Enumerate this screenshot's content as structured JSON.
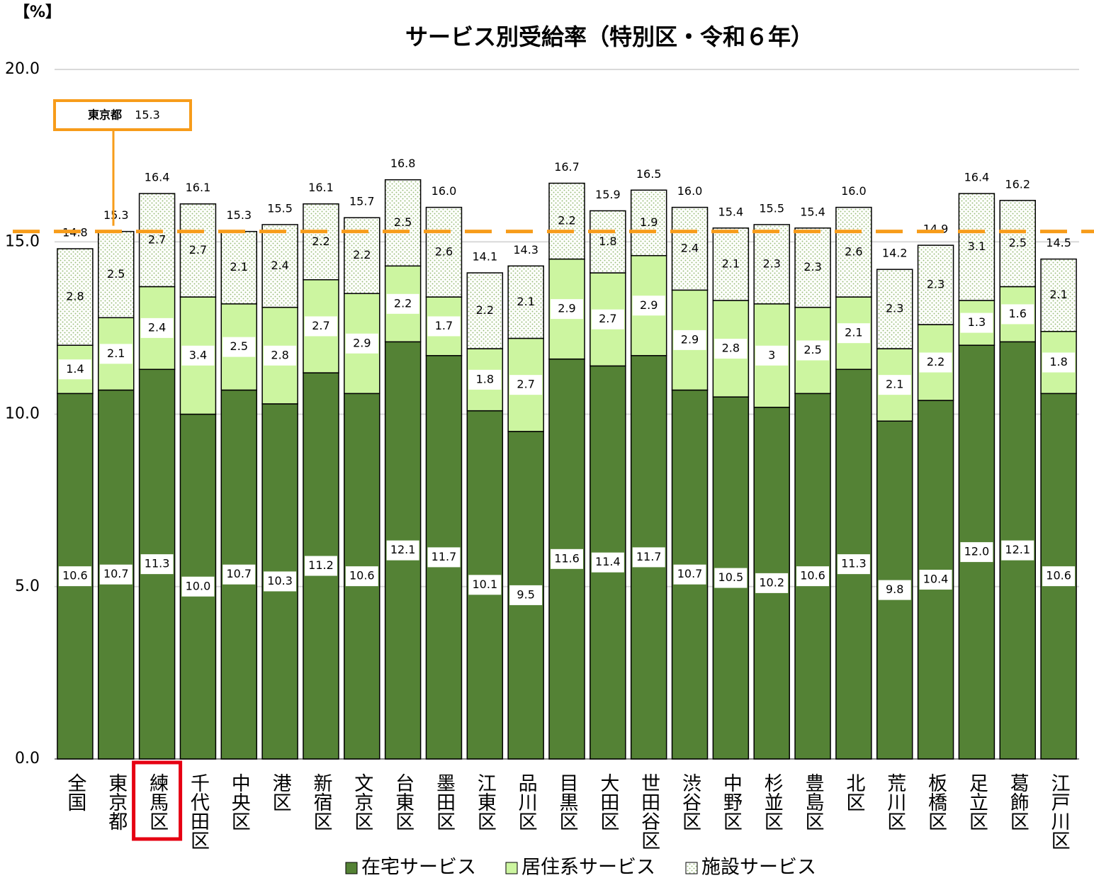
{
  "chart_data": {
    "type": "stacked_bar",
    "title": "サービス別受給率（特別区・令和６年）",
    "unit_label": "【%】",
    "categories": [
      "全国",
      "東京都",
      "練馬区",
      "千代田区",
      "中央区",
      "港区",
      "新宿区",
      "文京区",
      "台東区",
      "墨田区",
      "江東区",
      "品川区",
      "目黒区",
      "大田区",
      "世田谷区",
      "渋谷区",
      "中野区",
      "杉並区",
      "豊島区",
      "北区",
      "荒川区",
      "板橋区",
      "足立区",
      "葛飾区",
      "江戸川区"
    ],
    "highlight_category": "練馬区",
    "series": [
      {
        "name": "在宅サービス",
        "color": "#548235",
        "values": [
          10.6,
          10.7,
          11.3,
          10.0,
          10.7,
          10.3,
          11.2,
          10.6,
          12.1,
          11.7,
          10.1,
          9.5,
          11.6,
          11.4,
          11.7,
          10.7,
          10.5,
          10.2,
          10.6,
          11.3,
          9.8,
          10.4,
          12.0,
          12.1,
          10.6
        ],
        "value_labels": [
          "10.6",
          "10.7",
          "11.3",
          "10.0",
          "10.7",
          "10.3",
          "11.2",
          "10.6",
          "12.1",
          "11.7",
          "10.1",
          "9.5",
          "11.6",
          "11.4",
          "11.7",
          "10.7",
          "10.5",
          "10.2",
          "10.6",
          "11.3",
          "9.8",
          "10.4",
          "12.0",
          "12.1",
          "10.6"
        ]
      },
      {
        "name": "居住系サービス",
        "color": "#ccf5a0",
        "values": [
          1.4,
          2.1,
          2.4,
          3.4,
          2.5,
          2.8,
          2.7,
          2.9,
          2.2,
          1.7,
          1.8,
          2.7,
          2.9,
          2.7,
          2.9,
          2.9,
          2.8,
          3,
          2.5,
          2.1,
          2.1,
          2.2,
          1.3,
          1.6,
          1.8
        ]
      },
      {
        "name": "施設サービス",
        "color": "#ffffff",
        "values": [
          2.8,
          2.5,
          2.7,
          2.7,
          2.1,
          2.4,
          2.2,
          2.2,
          2.5,
          2.6,
          2.2,
          2.1,
          2.2,
          1.8,
          1.9,
          2.4,
          2.1,
          2.3,
          2.3,
          2.6,
          2.3,
          2.3,
          3.1,
          2.5,
          2.1
        ]
      }
    ],
    "totals": [
      14.8,
      15.3,
      16.4,
      16.1,
      15.3,
      15.5,
      16.1,
      15.7,
      16.8,
      16.0,
      14.1,
      14.3,
      16.7,
      15.9,
      16.5,
      16.0,
      15.4,
      15.5,
      15.4,
      16.0,
      14.2,
      14.9,
      16.4,
      16.2,
      14.5
    ],
    "total_labels": [
      "14.8",
      "15.3",
      "16.4",
      "16.1",
      "15.3",
      "15.5",
      "16.1",
      "15.7",
      "16.8",
      "16.0",
      "14.1",
      "14.3",
      "16.7",
      "15.9",
      "16.5",
      "16.0",
      "15.4",
      "15.5",
      "15.4",
      "16.0",
      "14.2",
      "14.9",
      "16.4",
      "16.2",
      "14.5"
    ],
    "reference": {
      "label": "東京都",
      "value": 15.3,
      "value_label": "15.3",
      "color": "#f79c1a"
    },
    "ylim": [
      0,
      20
    ],
    "yticks": [
      {
        "value": 0,
        "label": "0.0"
      },
      {
        "value": 5,
        "label": "5.0"
      },
      {
        "value": 10,
        "label": "10.0"
      },
      {
        "value": 15,
        "label": "15.0"
      },
      {
        "value": 20,
        "label": "20.0"
      }
    ],
    "grid": true
  }
}
